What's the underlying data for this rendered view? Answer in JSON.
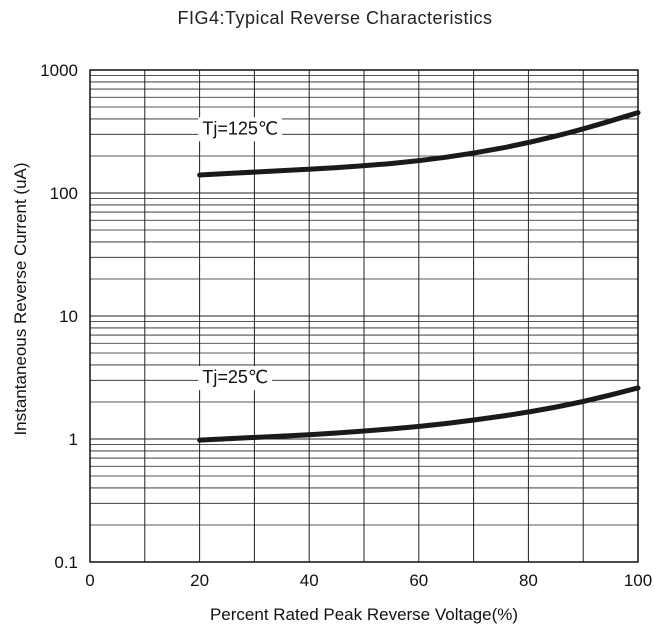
{
  "chart_data": {
    "type": "line",
    "title": "FIG4:Typical Reverse Characteristics",
    "xlabel": "Percent Rated Peak Reverse Voltage(%)",
    "ylabel": "Instantaneous Reverse Current (uA)",
    "xlim": [
      0,
      100
    ],
    "ylim": [
      0.1,
      1000
    ],
    "y_scale": "log",
    "grid": true,
    "x_ticks": [
      "0",
      "20",
      "40",
      "60",
      "80",
      "100"
    ],
    "x_tick_values": [
      0,
      20,
      40,
      60,
      80,
      100
    ],
    "y_ticks": [
      "0.1",
      "1",
      "10",
      "100",
      "1000"
    ],
    "y_tick_values": [
      0.1,
      1,
      10,
      100,
      1000
    ],
    "series": [
      {
        "name": "Tj=125℃",
        "x": [
          20,
          30,
          40,
          50,
          60,
          70,
          80,
          90,
          100
        ],
        "values": [
          140,
          148,
          156,
          166,
          182,
          210,
          255,
          330,
          450
        ]
      },
      {
        "name": "Tj=25℃",
        "x": [
          20,
          30,
          40,
          50,
          60,
          70,
          80,
          90,
          100
        ],
        "values": [
          0.98,
          1.03,
          1.08,
          1.16,
          1.26,
          1.42,
          1.65,
          2.0,
          2.6
        ]
      }
    ]
  }
}
